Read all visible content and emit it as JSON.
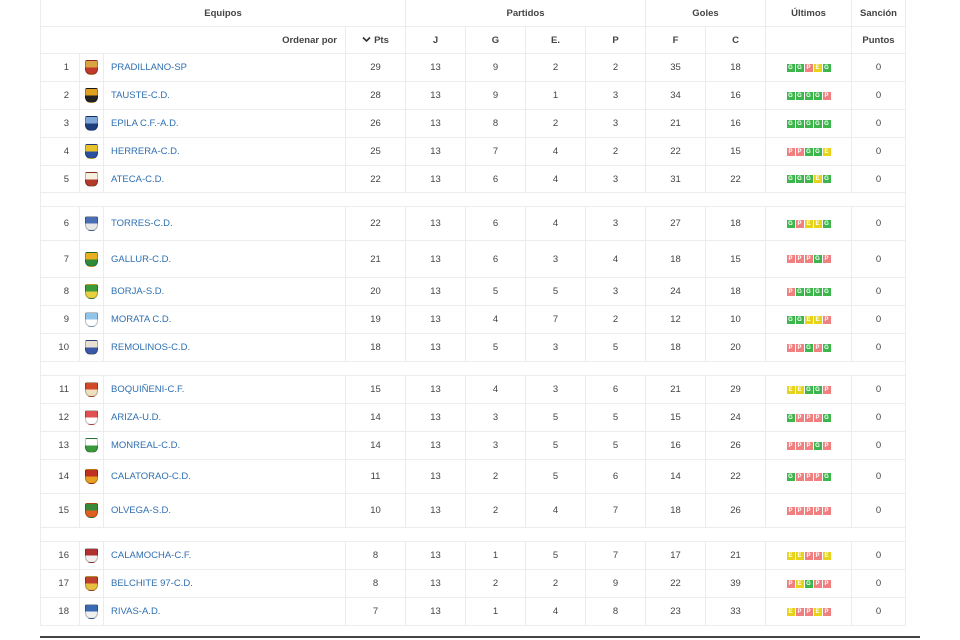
{
  "header": {
    "equipos": "Equipos",
    "partidos": "Partidos",
    "goles": "Goles",
    "ultimos": "Últimos",
    "sancion": "Sanción",
    "ordenar_por": "Ordenar por",
    "pts": "Pts",
    "j": "J",
    "g": "G",
    "e": "E.",
    "p": "P",
    "f": "F",
    "c": "C",
    "puntos": "Puntos"
  },
  "teams": [
    {
      "pos": "1",
      "name": "PRADILLANO-SP",
      "pts": "29",
      "j": "13",
      "g": "9",
      "e": "2",
      "p": "2",
      "f": "35",
      "c": "18",
      "last": [
        "G",
        "G",
        "P",
        "E",
        "G"
      ],
      "san": "0",
      "shield": [
        "#d9a441",
        "#c0392b"
      ],
      "group_end": false
    },
    {
      "pos": "2",
      "name": "TAUSTE-C.D.",
      "pts": "28",
      "j": "13",
      "g": "9",
      "e": "1",
      "p": "3",
      "f": "34",
      "c": "16",
      "last": [
        "G",
        "G",
        "G",
        "G",
        "P"
      ],
      "san": "0",
      "shield": [
        "#e0a020",
        "#222222"
      ],
      "group_end": false
    },
    {
      "pos": "3",
      "name": "EPILA C.F.-A.D.",
      "pts": "26",
      "j": "13",
      "g": "8",
      "e": "2",
      "p": "3",
      "f": "21",
      "c": "16",
      "last": [
        "G",
        "G",
        "G",
        "G",
        "G"
      ],
      "san": "0",
      "shield": [
        "#7fa7d8",
        "#1f3f7a"
      ],
      "group_end": false
    },
    {
      "pos": "4",
      "name": "HERRERA-C.D.",
      "pts": "25",
      "j": "13",
      "g": "7",
      "e": "4",
      "p": "2",
      "f": "22",
      "c": "15",
      "last": [
        "P",
        "P",
        "G",
        "G",
        "E"
      ],
      "san": "0",
      "shield": [
        "#e8c22a",
        "#2a4fa0"
      ],
      "group_end": false
    },
    {
      "pos": "5",
      "name": "ATECA-C.D.",
      "pts": "22",
      "j": "13",
      "g": "6",
      "e": "4",
      "p": "3",
      "f": "31",
      "c": "22",
      "last": [
        "G",
        "G",
        "G",
        "E",
        "G"
      ],
      "san": "0",
      "shield": [
        "#f5f0e0",
        "#b33a2a"
      ],
      "group_end": true
    },
    {
      "pos": "6",
      "name": "TORRES-C.D.",
      "pts": "22",
      "j": "13",
      "g": "6",
      "e": "4",
      "p": "3",
      "f": "27",
      "c": "18",
      "last": [
        "G",
        "P",
        "E",
        "E",
        "G"
      ],
      "san": "0",
      "shield": [
        "#4a6fb5",
        "#e8e8e8"
      ],
      "group_end": false
    },
    {
      "pos": "7",
      "name": "GALLUR-C.D.",
      "pts": "21",
      "j": "13",
      "g": "6",
      "e": "3",
      "p": "4",
      "f": "18",
      "c": "15",
      "last": [
        "P",
        "P",
        "P",
        "G",
        "P"
      ],
      "san": "0",
      "shield": [
        "#e8b020",
        "#2e8b3a"
      ],
      "group_end": false
    },
    {
      "pos": "8",
      "name": "BORJA-S.D.",
      "pts": "20",
      "j": "13",
      "g": "5",
      "e": "5",
      "p": "3",
      "f": "24",
      "c": "18",
      "last": [
        "P",
        "G",
        "G",
        "G",
        "G"
      ],
      "san": "0",
      "shield": [
        "#3a9a3a",
        "#e8d040"
      ],
      "group_end": false
    },
    {
      "pos": "9",
      "name": "MORATA C.D.",
      "pts": "19",
      "j": "13",
      "g": "4",
      "e": "7",
      "p": "2",
      "f": "12",
      "c": "10",
      "last": [
        "G",
        "G",
        "E",
        "E",
        "P"
      ],
      "san": "0",
      "shield": [
        "#8ec5e8",
        "#ffffff"
      ],
      "group_end": false
    },
    {
      "pos": "10",
      "name": "REMOLINOS-C.D.",
      "pts": "18",
      "j": "13",
      "g": "5",
      "e": "3",
      "p": "5",
      "f": "18",
      "c": "20",
      "last": [
        "P",
        "P",
        "G",
        "P",
        "G"
      ],
      "san": "0",
      "shield": [
        "#e8e0d0",
        "#3a5aa8"
      ],
      "group_end": true
    },
    {
      "pos": "11",
      "name": "BOQUIÑENI-C.F.",
      "pts": "15",
      "j": "13",
      "g": "4",
      "e": "3",
      "p": "6",
      "f": "21",
      "c": "29",
      "last": [
        "E",
        "E",
        "G",
        "G",
        "P"
      ],
      "san": "0",
      "shield": [
        "#d04a2a",
        "#f0e0c0"
      ],
      "group_end": false
    },
    {
      "pos": "12",
      "name": "ARIZA-U.D.",
      "pts": "14",
      "j": "13",
      "g": "3",
      "e": "5",
      "p": "5",
      "f": "15",
      "c": "24",
      "last": [
        "G",
        "P",
        "P",
        "P",
        "G"
      ],
      "san": "0",
      "shield": [
        "#e05050",
        "#ffffff"
      ],
      "group_end": false
    },
    {
      "pos": "13",
      "name": "MONREAL-C.D.",
      "pts": "14",
      "j": "13",
      "g": "3",
      "e": "5",
      "p": "5",
      "f": "16",
      "c": "26",
      "last": [
        "P",
        "P",
        "P",
        "G",
        "P"
      ],
      "san": "0",
      "shield": [
        "#ffffff",
        "#3a9a3a"
      ],
      "group_end": false
    },
    {
      "pos": "14",
      "name": "CALATORAO-C.D.",
      "pts": "11",
      "j": "13",
      "g": "2",
      "e": "5",
      "p": "6",
      "f": "14",
      "c": "22",
      "last": [
        "G",
        "P",
        "P",
        "P",
        "G"
      ],
      "san": "0",
      "shield": [
        "#c03020",
        "#e8a020"
      ],
      "group_end": false
    },
    {
      "pos": "15",
      "name": "OLVEGA-S.D.",
      "pts": "10",
      "j": "13",
      "g": "2",
      "e": "4",
      "p": "7",
      "f": "18",
      "c": "26",
      "last": [
        "P",
        "P",
        "P",
        "P",
        "P"
      ],
      "san": "0",
      "shield": [
        "#3a8a3a",
        "#e06020"
      ],
      "group_end": true
    },
    {
      "pos": "16",
      "name": "CALAMOCHA-C.F.",
      "pts": "8",
      "j": "13",
      "g": "1",
      "e": "5",
      "p": "7",
      "f": "17",
      "c": "21",
      "last": [
        "E",
        "E",
        "P",
        "P",
        "E"
      ],
      "san": "0",
      "shield": [
        "#b03030",
        "#f0f0f0"
      ],
      "group_end": false
    },
    {
      "pos": "17",
      "name": "BELCHITE 97-C.D.",
      "pts": "8",
      "j": "13",
      "g": "2",
      "e": "2",
      "p": "9",
      "f": "22",
      "c": "39",
      "last": [
        "P",
        "E",
        "G",
        "P",
        "P"
      ],
      "san": "0",
      "shield": [
        "#c04030",
        "#e8c040"
      ],
      "group_end": false
    },
    {
      "pos": "18",
      "name": "RIVAS-A.D.",
      "pts": "7",
      "j": "13",
      "g": "1",
      "e": "4",
      "p": "8",
      "f": "23",
      "c": "33",
      "last": [
        "E",
        "P",
        "P",
        "E",
        "P"
      ],
      "san": "0",
      "shield": [
        "#3a6ab5",
        "#f0f0f0"
      ],
      "group_end": false
    }
  ],
  "form_colors": {
    "G": "#3cb54a",
    "P": "#f08080",
    "E": "#e6d31a"
  }
}
